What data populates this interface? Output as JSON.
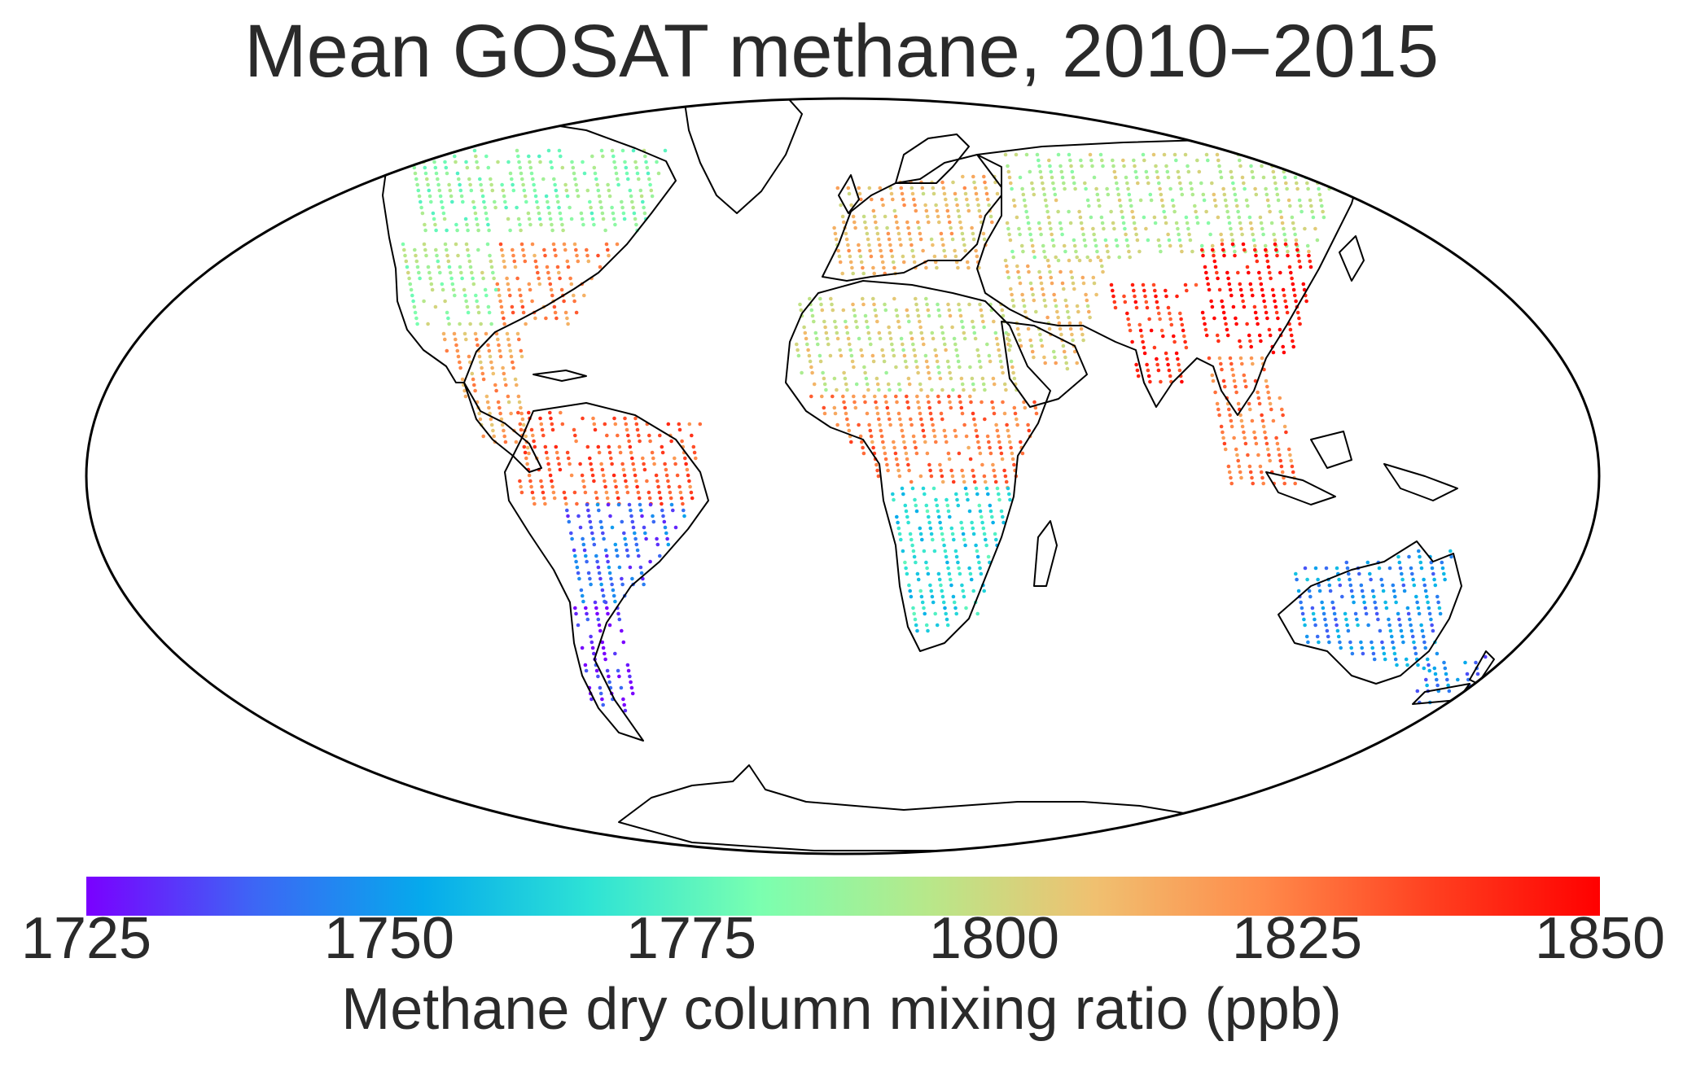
{
  "title": "Mean GOSAT methane, 2010−2015",
  "projection": "mollweide",
  "colorbar": {
    "label": "Methane dry column mixing ratio (ppb)",
    "min": 1725,
    "max": 1850,
    "ticks": [
      "1725",
      "1750",
      "1775",
      "1800",
      "1825",
      "1850"
    ],
    "colormap": "rainbow",
    "stops": [
      "#7a00ff",
      "#3d66f5",
      "#05aaec",
      "#2ee3d5",
      "#7affb0",
      "#b7e88a",
      "#f0c070",
      "#ff8a4a",
      "#ff4020",
      "#ff0000"
    ]
  },
  "colors": {
    "land_outline": "#000000",
    "frame": "#000000",
    "background": "#ffffff"
  },
  "chart_data": {
    "type": "heatmap",
    "title": "Mean GOSAT methane, 2010−2015",
    "value_label": "Methane dry column mixing ratio (ppb)",
    "value_range": [
      1725,
      1850
    ],
    "regions": [
      {
        "name": "North America north/Canada",
        "approx_ppb": 1785
      },
      {
        "name": "Eastern United States",
        "approx_ppb": 1822
      },
      {
        "name": "Western United States",
        "approx_ppb": 1790
      },
      {
        "name": "Mexico / Central America",
        "approx_ppb": 1815
      },
      {
        "name": "Northern South America / Amazon",
        "approx_ppb": 1830
      },
      {
        "name": "Southern South America",
        "approx_ppb": 1740
      },
      {
        "name": "Patagonia",
        "approx_ppb": 1728
      },
      {
        "name": "Europe",
        "approx_ppb": 1810
      },
      {
        "name": "Russia / Siberia",
        "approx_ppb": 1795
      },
      {
        "name": "North Africa / Sahara",
        "approx_ppb": 1800
      },
      {
        "name": "Central Africa",
        "approx_ppb": 1825
      },
      {
        "name": "Southern Africa",
        "approx_ppb": 1765
      },
      {
        "name": "Middle East",
        "approx_ppb": 1805
      },
      {
        "name": "India / South Asia",
        "approx_ppb": 1840
      },
      {
        "name": "Eastern China",
        "approx_ppb": 1848
      },
      {
        "name": "Southeast Asia",
        "approx_ppb": 1825
      },
      {
        "name": "Australia",
        "approx_ppb": 1748
      },
      {
        "name": "New Zealand",
        "approx_ppb": 1745
      }
    ]
  }
}
